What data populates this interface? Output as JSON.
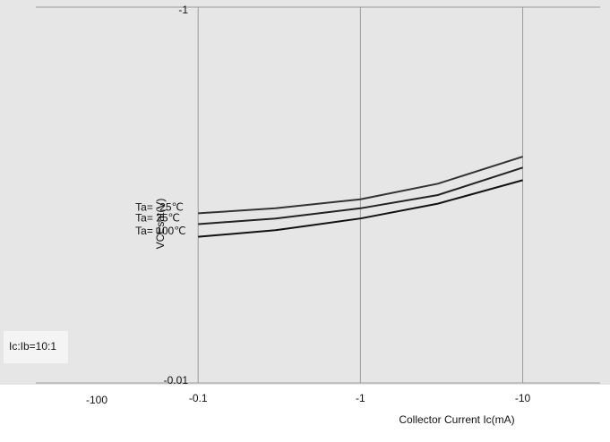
{
  "chart_data": {
    "type": "line",
    "y_label": "VCEsat(V)",
    "x_label": "Collector Current   Ic(mA)",
    "annotations": [
      "Ic:Ib=10:1",
      "-100"
    ],
    "x": [
      -0.1,
      -0.3,
      -1,
      -3,
      -10
    ],
    "series": [
      {
        "name": "Ta= 100℃",
        "color": "#111111",
        "values": [
          -0.06,
          -0.065,
          -0.075,
          -0.09,
          -0.12
        ]
      },
      {
        "name": "Ta= 25℃",
        "color": "#222222",
        "values": [
          -0.07,
          -0.075,
          -0.085,
          -0.1,
          -0.14
        ]
      },
      {
        "name": "Ta= -25℃",
        "color": "#333333",
        "values": [
          -0.08,
          -0.085,
          -0.095,
          -0.115,
          -0.16
        ]
      }
    ],
    "xlim": [
      -0.01,
      -30
    ],
    "xticks": [
      -0.1,
      -1,
      -10
    ],
    "ylim": [
      -0.01,
      -1
    ],
    "yticks": [
      -0.01,
      -1
    ],
    "log_x": true,
    "log_y": true,
    "grid": true
  }
}
